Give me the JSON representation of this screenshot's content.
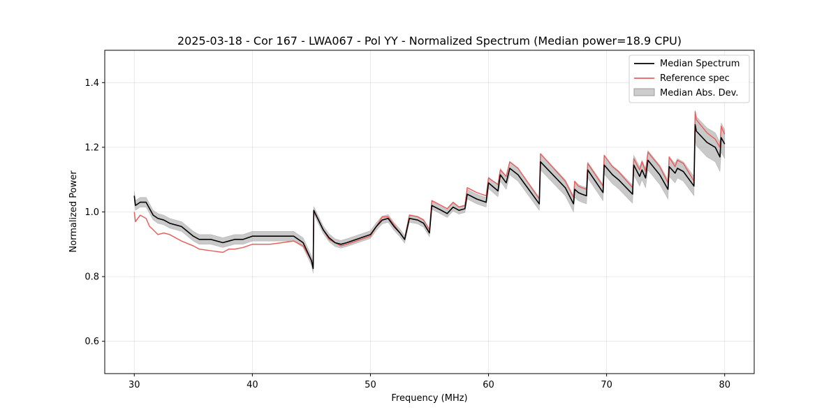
{
  "chart_data": {
    "type": "line",
    "title": "2025-03-18 - Cor 167 - LWA067 - Pol YY - Normalized Spectrum (Median power=18.9 CPU)",
    "xlabel": "Frequency (MHz)",
    "ylabel": "Normalized Power",
    "xlim": [
      27.5,
      82.5
    ],
    "ylim": [
      0.5,
      1.5
    ],
    "xticks": [
      30,
      40,
      50,
      60,
      70,
      80
    ],
    "yticks": [
      0.6,
      0.8,
      1.0,
      1.2,
      1.4
    ],
    "xtick_labels": [
      "30",
      "40",
      "50",
      "60",
      "70",
      "80"
    ],
    "ytick_labels": [
      "0.6",
      "0.8",
      "1.0",
      "1.2",
      "1.4"
    ],
    "grid": true,
    "legend_position": "top-right",
    "legend": [
      "Median Spectrum",
      "Reference spec",
      "Median Abs. Dev."
    ],
    "series": [
      {
        "name": "Median Spectrum",
        "color": "#000000",
        "x": [
          30.0,
          30.1,
          30.5,
          31.0,
          31.3,
          31.6,
          32.0,
          32.5,
          33.0,
          34.0,
          35.0,
          35.5,
          36.5,
          37.5,
          38.0,
          38.5,
          39.2,
          40.0,
          40.5,
          41.5,
          42.5,
          43.5,
          44.3,
          45.0,
          45.15,
          45.2,
          45.6,
          46.0,
          46.5,
          47.0,
          47.5,
          48.0,
          48.8,
          49.2,
          50.0,
          50.5,
          51.0,
          51.5,
          52.0,
          52.5,
          52.9,
          53.3,
          54.0,
          54.5,
          55.0,
          55.2,
          56.0,
          56.5,
          57.0,
          57.5,
          58.0,
          58.2,
          59.0,
          59.8,
          60.0,
          60.8,
          61.0,
          61.5,
          61.8,
          62.5,
          64.3,
          64.4,
          66.5,
          67.2,
          67.3,
          67.6,
          67.9,
          68.3,
          68.4,
          69.7,
          69.8,
          70.5,
          71.0,
          72.2,
          72.3,
          72.8,
          73.0,
          73.3,
          73.5,
          74.5,
          75.2,
          75.3,
          75.8,
          76.0,
          76.5,
          77.4,
          77.5,
          77.6,
          78.5,
          79.2,
          79.6,
          79.7,
          80.0
        ],
        "values": [
          1.05,
          1.02,
          1.03,
          1.03,
          1.01,
          0.99,
          0.98,
          0.975,
          0.965,
          0.955,
          0.925,
          0.915,
          0.915,
          0.905,
          0.91,
          0.915,
          0.915,
          0.925,
          0.925,
          0.925,
          0.925,
          0.925,
          0.905,
          0.85,
          0.825,
          1.005,
          0.975,
          0.945,
          0.92,
          0.905,
          0.9,
          0.905,
          0.915,
          0.92,
          0.93,
          0.955,
          0.975,
          0.98,
          0.955,
          0.935,
          0.915,
          0.98,
          0.975,
          0.965,
          0.935,
          1.02,
          1.005,
          0.995,
          1.015,
          1.005,
          1.01,
          1.055,
          1.04,
          1.03,
          1.09,
          1.065,
          1.115,
          1.09,
          1.135,
          1.115,
          1.025,
          1.155,
          1.075,
          1.025,
          1.07,
          1.06,
          1.055,
          1.05,
          1.13,
          1.06,
          1.145,
          1.115,
          1.1,
          1.055,
          1.145,
          1.11,
          1.13,
          1.105,
          1.16,
          1.115,
          1.07,
          1.14,
          1.12,
          1.135,
          1.125,
          1.08,
          1.27,
          1.25,
          1.215,
          1.2,
          1.17,
          1.23,
          1.21
        ]
      },
      {
        "name": "Reference spec",
        "color": "#e8605f",
        "x": [
          30.0,
          30.1,
          30.5,
          31.0,
          31.3,
          31.6,
          32.0,
          32.5,
          33.0,
          34.0,
          35.0,
          35.5,
          36.5,
          37.5,
          38.0,
          38.5,
          39.2,
          40.0,
          40.5,
          41.5,
          42.5,
          43.5,
          44.3,
          45.0,
          45.15,
          45.2,
          45.6,
          46.0,
          46.5,
          47.0,
          47.5,
          48.0,
          48.8,
          49.2,
          50.0,
          50.5,
          51.0,
          51.5,
          52.0,
          52.5,
          52.9,
          53.3,
          54.0,
          54.5,
          55.0,
          55.2,
          56.0,
          56.5,
          57.0,
          57.5,
          58.0,
          58.2,
          59.0,
          59.8,
          60.0,
          60.8,
          61.0,
          61.5,
          61.8,
          62.5,
          64.3,
          64.4,
          66.5,
          67.2,
          67.3,
          67.6,
          67.9,
          68.3,
          68.4,
          69.7,
          69.8,
          70.5,
          71.0,
          72.2,
          72.3,
          72.8,
          73.0,
          73.3,
          73.5,
          74.5,
          75.2,
          75.3,
          75.8,
          76.0,
          76.5,
          77.4,
          77.5,
          77.6,
          78.5,
          79.2,
          79.6,
          79.7,
          80.0
        ],
        "values": [
          1.0,
          0.97,
          0.99,
          0.98,
          0.955,
          0.945,
          0.93,
          0.935,
          0.93,
          0.91,
          0.895,
          0.885,
          0.88,
          0.875,
          0.885,
          0.885,
          0.89,
          0.9,
          0.9,
          0.9,
          0.905,
          0.91,
          0.895,
          0.85,
          0.83,
          1.0,
          0.975,
          0.945,
          0.915,
          0.905,
          0.895,
          0.9,
          0.91,
          0.915,
          0.925,
          0.955,
          0.985,
          0.985,
          0.96,
          0.935,
          0.915,
          0.99,
          0.985,
          0.975,
          0.945,
          1.035,
          1.02,
          1.01,
          1.03,
          1.015,
          1.02,
          1.075,
          1.06,
          1.05,
          1.105,
          1.085,
          1.13,
          1.11,
          1.155,
          1.135,
          1.04,
          1.18,
          1.095,
          1.045,
          1.095,
          1.08,
          1.075,
          1.07,
          1.15,
          1.08,
          1.175,
          1.14,
          1.125,
          1.075,
          1.165,
          1.13,
          1.155,
          1.125,
          1.185,
          1.14,
          1.09,
          1.17,
          1.14,
          1.16,
          1.15,
          1.095,
          1.31,
          1.285,
          1.245,
          1.225,
          1.2,
          1.265,
          1.24
        ]
      }
    ],
    "band": {
      "name": "Median Abs. Dev.",
      "color": "#9c9c9c",
      "x": [
        30.0,
        30.1,
        30.5,
        31.0,
        31.3,
        31.6,
        32.0,
        32.5,
        33.0,
        34.0,
        35.0,
        35.5,
        36.5,
        37.5,
        38.0,
        38.5,
        39.2,
        40.0,
        40.5,
        41.5,
        42.5,
        43.5,
        44.3,
        45.0,
        45.15,
        45.2,
        45.6,
        46.0,
        46.5,
        47.0,
        47.5,
        48.0,
        48.8,
        49.2,
        50.0,
        50.5,
        51.0,
        51.5,
        52.0,
        52.5,
        52.9,
        53.3,
        54.0,
        54.5,
        55.0,
        55.2,
        56.0,
        56.5,
        57.0,
        57.5,
        58.0,
        58.2,
        59.0,
        59.8,
        60.0,
        60.8,
        61.0,
        61.5,
        61.8,
        62.5,
        64.3,
        64.4,
        66.5,
        67.2,
        67.3,
        67.6,
        67.9,
        68.3,
        68.4,
        69.7,
        69.8,
        70.5,
        71.0,
        72.2,
        72.3,
        72.8,
        73.0,
        73.3,
        73.5,
        74.5,
        75.2,
        75.3,
        75.8,
        76.0,
        76.5,
        77.4,
        77.5,
        77.6,
        78.5,
        79.2,
        79.6,
        79.7,
        80.0
      ],
      "half_width": [
        0.015,
        0.015,
        0.015,
        0.015,
        0.015,
        0.015,
        0.015,
        0.015,
        0.015,
        0.015,
        0.015,
        0.015,
        0.015,
        0.015,
        0.015,
        0.015,
        0.015,
        0.015,
        0.015,
        0.015,
        0.015,
        0.015,
        0.015,
        0.015,
        0.015,
        0.012,
        0.012,
        0.012,
        0.012,
        0.012,
        0.012,
        0.012,
        0.012,
        0.012,
        0.012,
        0.012,
        0.012,
        0.012,
        0.012,
        0.012,
        0.012,
        0.012,
        0.012,
        0.012,
        0.012,
        0.012,
        0.012,
        0.012,
        0.012,
        0.012,
        0.012,
        0.015,
        0.015,
        0.015,
        0.018,
        0.018,
        0.02,
        0.02,
        0.02,
        0.02,
        0.02,
        0.025,
        0.025,
        0.025,
        0.025,
        0.025,
        0.025,
        0.025,
        0.025,
        0.025,
        0.028,
        0.028,
        0.028,
        0.028,
        0.03,
        0.03,
        0.03,
        0.03,
        0.03,
        0.03,
        0.03,
        0.03,
        0.03,
        0.03,
        0.03,
        0.03,
        0.045,
        0.045,
        0.045,
        0.045,
        0.045,
        0.045,
        0.045
      ]
    }
  }
}
